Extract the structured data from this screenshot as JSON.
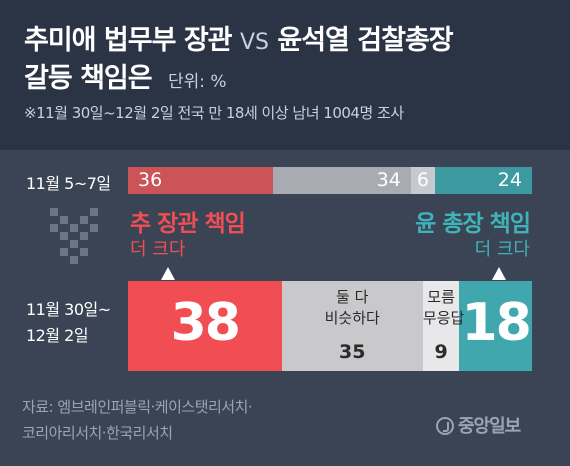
{
  "title": {
    "line1_a": "추미애 법무부 장관",
    "line1_vs": "VS",
    "line1_b": "윤석열 검찰총장",
    "line2": "갈등 책임은",
    "unit": "단위: %"
  },
  "subtitle": "※11월 30일~12월 2일 전국 만 18세 이상 남녀 1004명 조사",
  "labels": {
    "choo_main": "추 장관 책임",
    "choo_sub": "더 크다",
    "yoon_main": "윤 총장 책임",
    "yoon_sub": "더 크다",
    "same_line1": "둘 다",
    "same_line2": "비슷하다",
    "dk_line1": "모름",
    "dk_line2": "무응답"
  },
  "source_line1": "자료: 엠브레인퍼블릭·케이스탯리서치·",
  "source_line2": "코리아리서치·한국리서치",
  "logo": "중앙일보",
  "colors": {
    "choo": "#f04e53",
    "choo_muted": "#cc5358",
    "yoon": "#3fa7ad",
    "yoon_muted": "#3d9aa1",
    "same": "#c9c9cc",
    "same_muted": "#a8abb2",
    "dk": "#e8e8ea",
    "dk_muted": "#c7c9ce"
  },
  "chart_data": {
    "type": "bar",
    "stacked": true,
    "orientation": "horizontal",
    "categories": [
      "11월 5~7일",
      "11월 30일~12월 2일"
    ],
    "series": [
      {
        "name": "추 장관 책임 더 크다",
        "values": [
          36,
          38
        ]
      },
      {
        "name": "둘 다 비슷하다",
        "values": [
          34,
          35
        ]
      },
      {
        "name": "모름 무응답",
        "values": [
          6,
          9
        ]
      },
      {
        "name": "윤 총장 책임 더 크다",
        "values": [
          24,
          18
        ]
      }
    ],
    "row1_label": "11월 5~7일",
    "row2_label_line1": "11월 30일~",
    "row2_label_line2": "12월 2일",
    "xlim": [
      0,
      100
    ]
  }
}
